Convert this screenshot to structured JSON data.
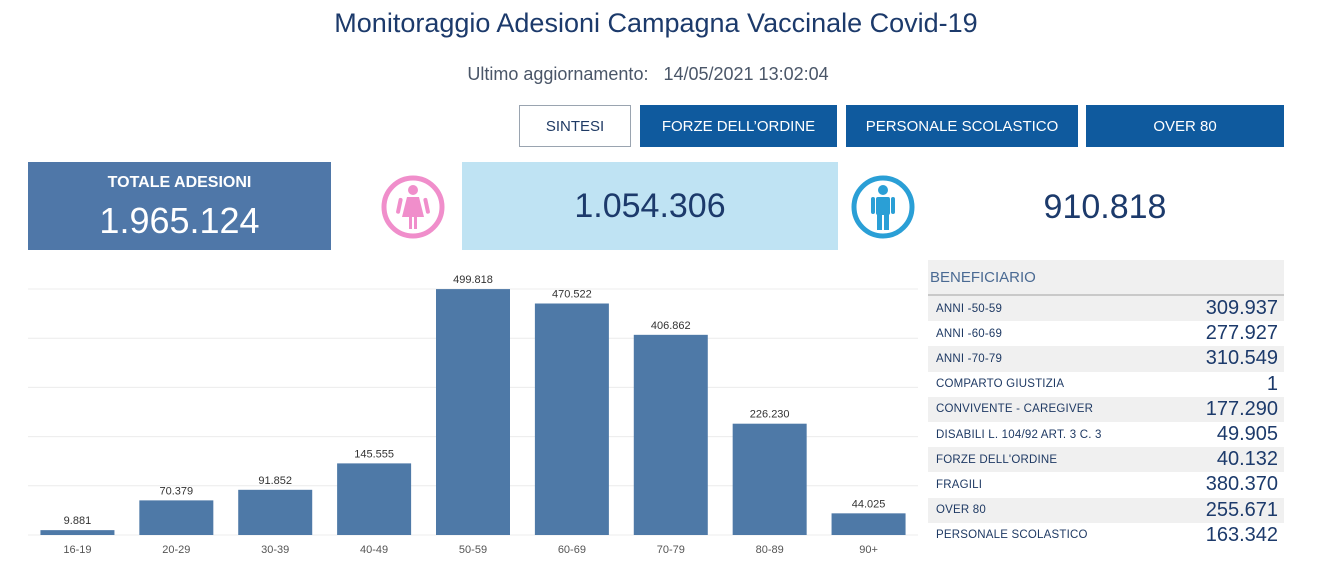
{
  "header": {
    "title": "Monitoraggio Adesioni Campagna Vaccinale Covid-19",
    "updated_label": "Ultimo aggiornamento:",
    "updated_value": "14/05/2021 13:02:04"
  },
  "nav": {
    "sintesi": "SINTESI",
    "forze": "FORZE DELL’ORDINE",
    "scolastico": "PERSONALE SCOLASTICO",
    "over80": "OVER 80"
  },
  "totals": {
    "label": "TOTALE ADESIONI",
    "value": "1.965.124",
    "female": "1.054.306",
    "male": "910.818"
  },
  "colors": {
    "bar": "#4e79a7",
    "female_icon": "#f08ecb",
    "male_icon": "#2a9fd6",
    "nav_solid": "#0f5a9e"
  },
  "chart_data": {
    "type": "bar",
    "categories": [
      "16-19",
      "20-29",
      "30-39",
      "40-49",
      "50-59",
      "60-69",
      "70-79",
      "80-89",
      "90+"
    ],
    "values": [
      9881,
      70379,
      91852,
      145555,
      499818,
      470522,
      406862,
      226230,
      44025
    ],
    "labels": [
      "9.881",
      "70.379",
      "91.852",
      "145.555",
      "499.818",
      "470.522",
      "406.862",
      "226.230",
      "44.025"
    ],
    "ylim": [
      0,
      500000
    ],
    "grid": true
  },
  "table": {
    "header": "BENEFICIARIO",
    "rows": [
      {
        "label": "ANNI -50-59",
        "value": "309.937"
      },
      {
        "label": "ANNI -60-69",
        "value": "277.927"
      },
      {
        "label": "ANNI -70-79",
        "value": "310.549"
      },
      {
        "label": "COMPARTO GIUSTIZIA",
        "value": "1"
      },
      {
        "label": "CONVIVENTE - CAREGIVER",
        "value": "177.290"
      },
      {
        "label": "DISABILI L. 104/92 ART. 3 C. 3",
        "value": "49.905"
      },
      {
        "label": "FORZE DELL'ORDINE",
        "value": "40.132"
      },
      {
        "label": "FRAGILI",
        "value": "380.370"
      },
      {
        "label": "OVER 80",
        "value": "255.671"
      },
      {
        "label": "PERSONALE SCOLASTICO",
        "value": "163.342"
      }
    ]
  }
}
